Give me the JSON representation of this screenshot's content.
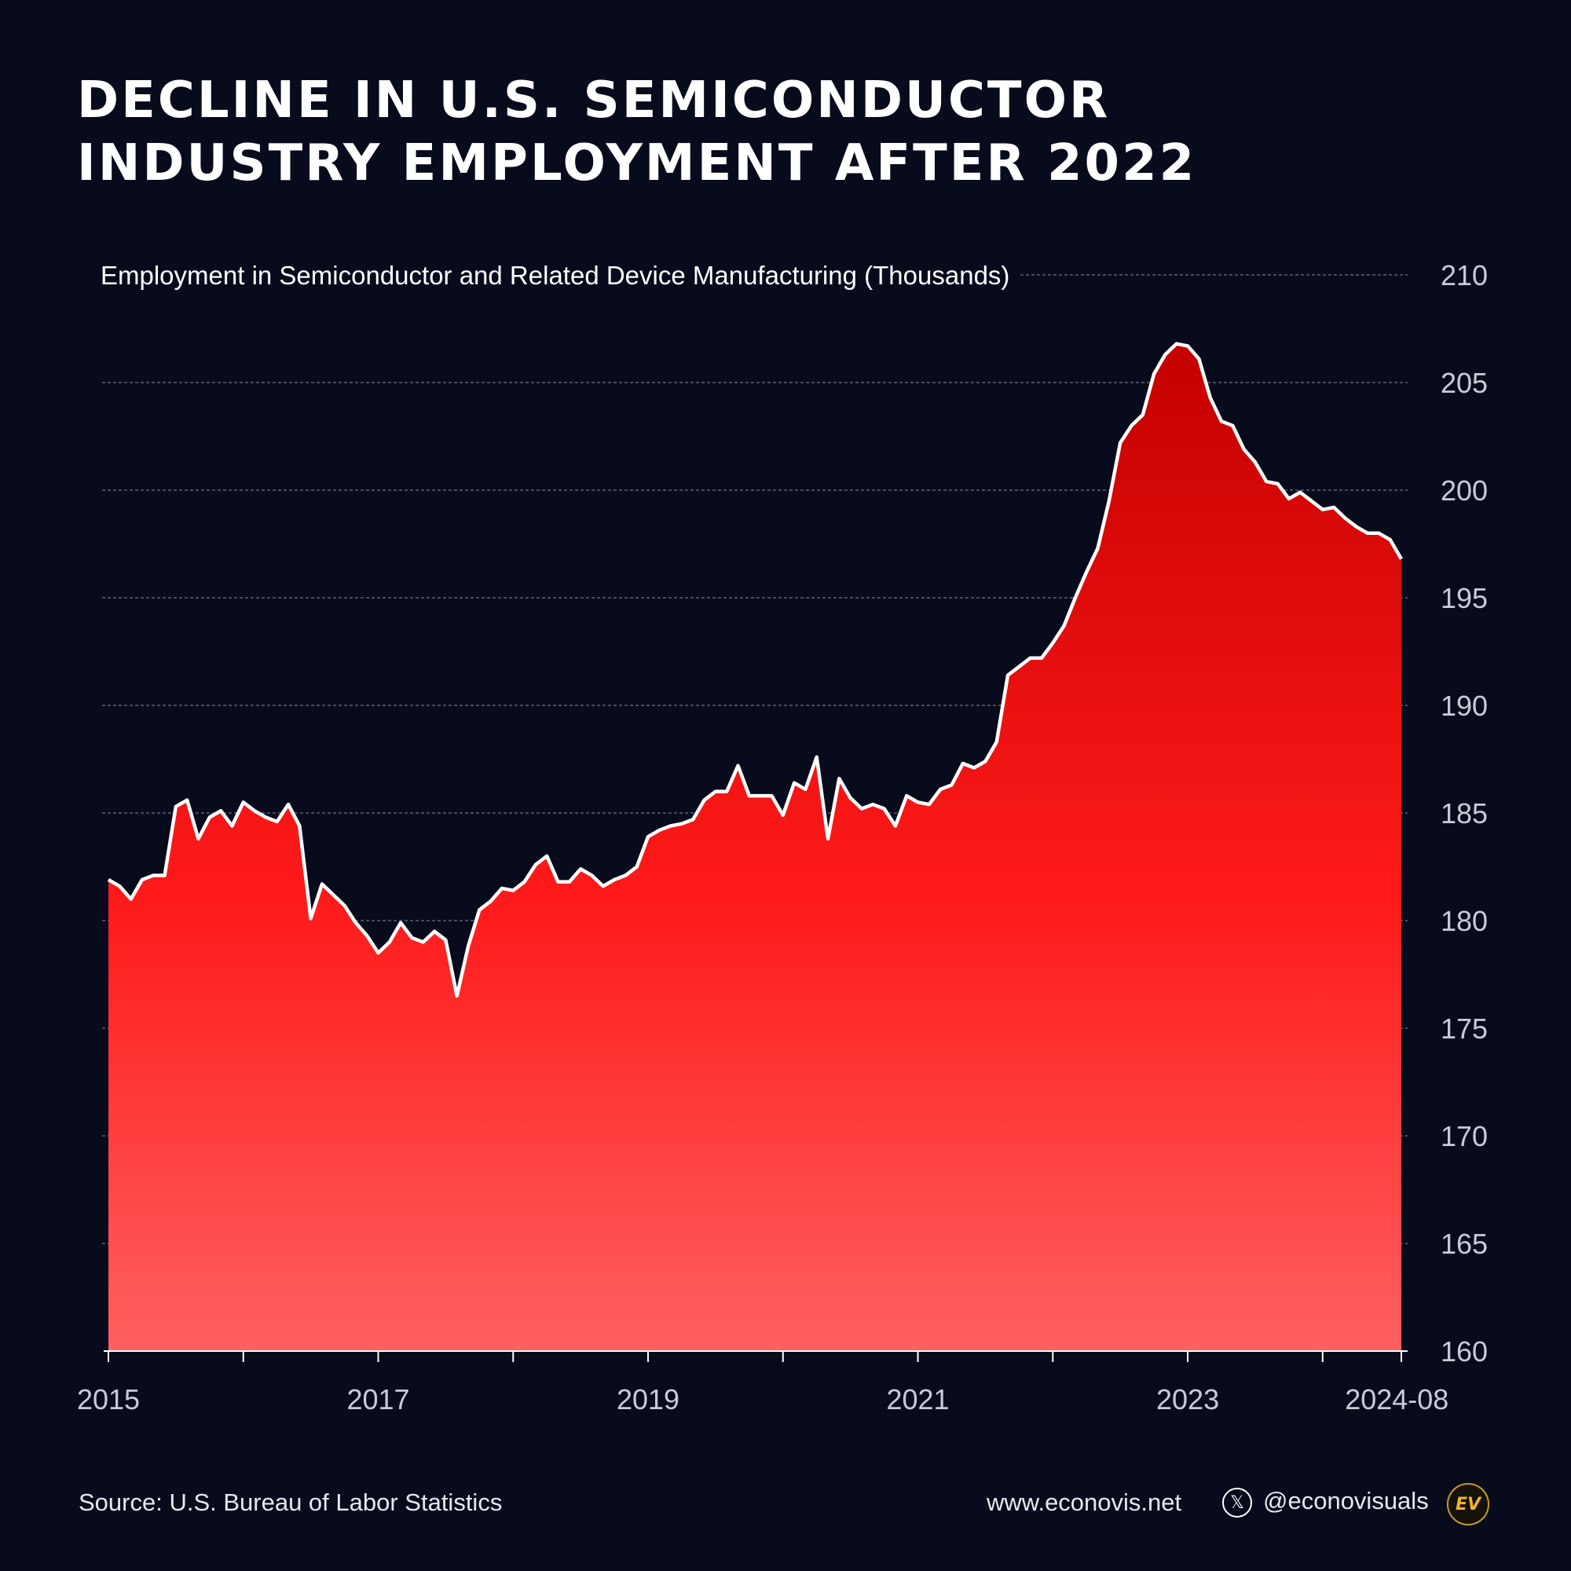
{
  "title": {
    "line1": "DECLINE IN U.S. SEMICONDUCTOR",
    "line2": "INDUSTRY EMPLOYMENT AFTER 2022"
  },
  "footer": {
    "source": "Source: U.S. Bureau of Labor Statistics",
    "website": "www.econovis.net",
    "x_icon": "x-logo-icon",
    "x_glyph": "𝕏",
    "handle": "@econovisuals",
    "logo_text": "EV"
  },
  "colors": {
    "background": "#070b1c",
    "line": "#ffffff",
    "fill_top": "#c40000",
    "fill_mid": "#ff1a1a",
    "fill_bottom": "#ff6060",
    "grid": "#6f7385",
    "tick_text": "#c9cbd6"
  },
  "chart_data": {
    "type": "area",
    "title": "",
    "ylabel": "Employment in Semiconductor and Related Device Manufacturing (Thousands)",
    "xlabel": "",
    "x_ticks": [
      "2015",
      "2017",
      "2019",
      "2021",
      "2023",
      "2024-08"
    ],
    "y_ticks": [
      160,
      165,
      170,
      175,
      180,
      185,
      190,
      195,
      200,
      205,
      210
    ],
    "ylim": [
      160,
      210
    ],
    "x_range": [
      "2015-01",
      "2024-08"
    ],
    "grid": "horizontal dashed",
    "series": [
      {
        "values": [
          181.9,
          181.6,
          181.0,
          181.9,
          182.1,
          182.1,
          185.3,
          185.6,
          183.8,
          184.8,
          185.1,
          184.4,
          185.5,
          185.1,
          184.8,
          184.6,
          185.4,
          184.4,
          180.1,
          181.7,
          181.2,
          180.7,
          179.9,
          179.3,
          178.5,
          179.0,
          179.9,
          179.2,
          179.0,
          179.5,
          179.1,
          176.5,
          178.8,
          180.5,
          180.9,
          181.5,
          181.4,
          181.8,
          182.6,
          183.0,
          181.8,
          181.8,
          182.4,
          182.1,
          181.6,
          181.9,
          182.1,
          182.5,
          183.9,
          184.2,
          184.4,
          184.5,
          184.7,
          185.6,
          186.0,
          186.0,
          187.2,
          185.8,
          185.8,
          185.8,
          184.9,
          186.4,
          186.1,
          187.6,
          183.8,
          186.6,
          185.7,
          185.2,
          185.4,
          185.2,
          184.4,
          185.8,
          185.5,
          185.4,
          186.1,
          186.3,
          187.3,
          187.1,
          187.4,
          188.3,
          191.4,
          191.8,
          192.2,
          192.2,
          192.9,
          193.7,
          195.0,
          196.2,
          197.3,
          199.5,
          202.2,
          203.0,
          203.5,
          205.4,
          206.3,
          206.8,
          206.7,
          206.1,
          204.3,
          203.2,
          203.0,
          201.9,
          201.3,
          200.4,
          200.3,
          199.6,
          199.9,
          199.5,
          199.1,
          199.2,
          198.7,
          198.3,
          198.0,
          198.0,
          197.7,
          196.8
        ]
      }
    ]
  }
}
